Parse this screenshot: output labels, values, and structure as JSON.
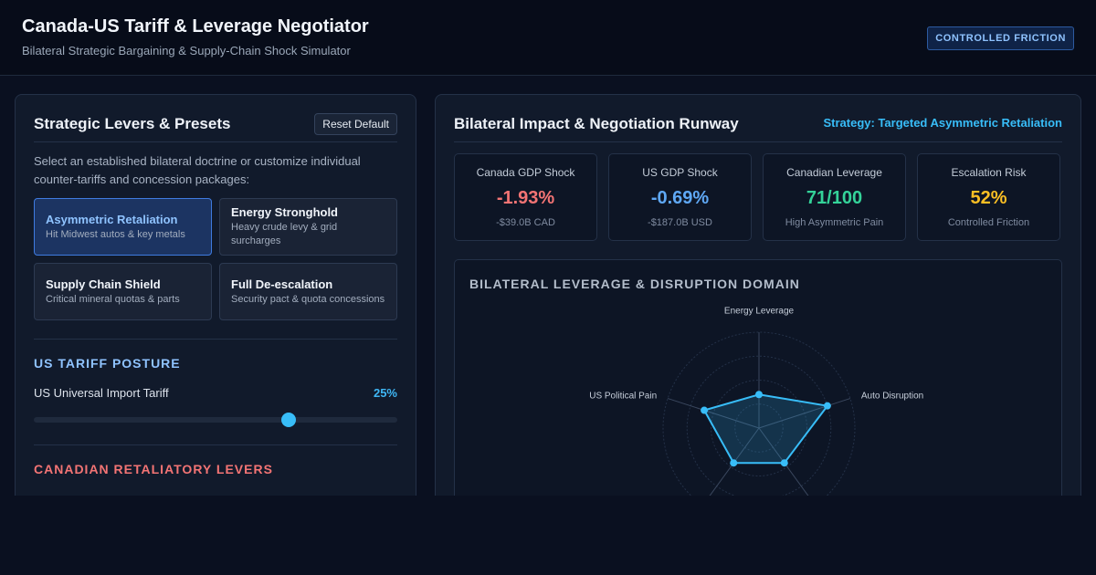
{
  "app": {
    "title": "Canada-US Tariff & Leverage Negotiator",
    "subtitle": "Bilateral Strategic Bargaining & Supply-Chain Shock Simulator",
    "badge": "CONTROLLED FRICTION"
  },
  "levers_panel": {
    "title": "Strategic Levers & Presets",
    "reset_label": "Reset Default",
    "intro": "Select an established bilateral doctrine or customize individual counter-tariffs and concession packages:",
    "presets": [
      {
        "name": "Asymmetric Retaliation",
        "desc": "Hit Midwest autos & key metals",
        "active": true
      },
      {
        "name": "Energy Stronghold",
        "desc": "Heavy crude levy & grid surcharges",
        "active": false
      },
      {
        "name": "Supply Chain Shield",
        "desc": "Critical mineral quotas & parts",
        "active": false
      },
      {
        "name": "Full De-escalation",
        "desc": "Security pact & quota concessions",
        "active": false
      }
    ],
    "us_section": {
      "heading": "US TARIFF POSTURE",
      "slider_label": "US Universal Import Tariff",
      "slider_value": "25%",
      "slider_fraction": 0.7
    },
    "ca_section": {
      "heading": "CANADIAN RETALIATORY LEVERS"
    }
  },
  "impact_panel": {
    "title": "Bilateral Impact & Negotiation Runway",
    "strategy": "Strategy: Targeted Asymmetric Retaliation",
    "kpis": [
      {
        "title": "Canada GDP Shock",
        "value": "-1.93%",
        "sub": "-$39.0B CAD",
        "color": "#f37474"
      },
      {
        "title": "US GDP Shock",
        "value": "-0.69%",
        "sub": "-$187.0B USD",
        "color": "#5fa8f5"
      },
      {
        "title": "Canadian Leverage",
        "value": "71/100",
        "sub": "High Asymmetric Pain",
        "color": "#34d399"
      },
      {
        "title": "Escalation Risk",
        "value": "52%",
        "sub": "Controlled Friction",
        "color": "#fbbf24"
      }
    ],
    "radar": {
      "title": "BILATERAL LEVERAGE & DISRUPTION DOMAIN",
      "axes": [
        "Energy Leverage",
        "Auto Disruption",
        "",
        "",
        "US Political Pain"
      ],
      "values": [
        0.35,
        0.75,
        0.45,
        0.45,
        0.6
      ],
      "accent": "#38bdf8"
    }
  }
}
